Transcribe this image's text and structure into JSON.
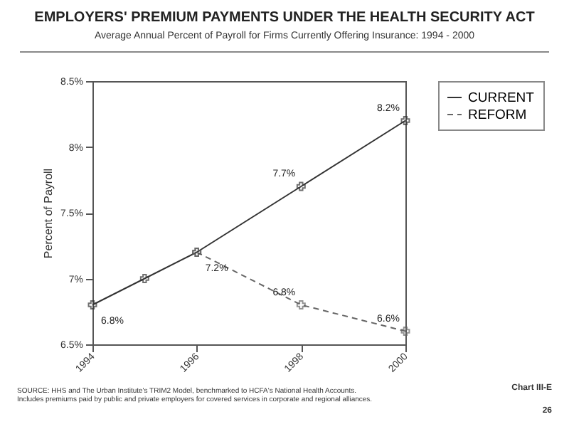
{
  "chart_data": {
    "type": "line",
    "title": "EMPLOYERS' PREMIUM PAYMENTS UNDER THE HEALTH SECURITY ACT",
    "subtitle": "Average Annual Percent of Payroll for Firms Currently Offering Insurance:  1994 - 2000",
    "ylabel": "Percent of Payroll",
    "xlim": [
      1994,
      2000
    ],
    "xticks": [
      1994,
      1996,
      1998,
      2000
    ],
    "ylim": [
      6.5,
      8.5
    ],
    "yticks": [
      {
        "value": 6.5,
        "label": "6.5%"
      },
      {
        "value": 7,
        "label": "7%"
      },
      {
        "value": 7.5,
        "label": "7.5%"
      },
      {
        "value": 8,
        "label": "8%"
      },
      {
        "value": 8.5,
        "label": "8.5%"
      }
    ],
    "series": [
      {
        "name": "CURRENT",
        "color": "#333333",
        "line_style": "solid",
        "x": [
          1994,
          1995,
          1996,
          1998,
          2000
        ],
        "values": [
          6.8,
          7.0,
          7.2,
          7.7,
          8.2
        ],
        "value_labels": [
          "6.8%",
          null,
          "7.2%",
          "7.7%",
          "8.2%"
        ]
      },
      {
        "name": "REFORM",
        "color": "#666666",
        "line_style": "dashed",
        "x": [
          1996,
          1998,
          2000
        ],
        "values": [
          7.2,
          6.8,
          6.6
        ],
        "value_labels": [
          null,
          "6.8%",
          "6.6%"
        ]
      }
    ],
    "marker": "cross",
    "grid": false,
    "legend": "right",
    "annotations": [
      "SOURCE:  HHS and The Urban Institute's TRIM2 Model, benchmarked to HCFA's National Health Accounts. Includes premiums paid by public and private employers for covered services in corporate and regional alliances.",
      "Chart III-E",
      "26"
    ]
  }
}
